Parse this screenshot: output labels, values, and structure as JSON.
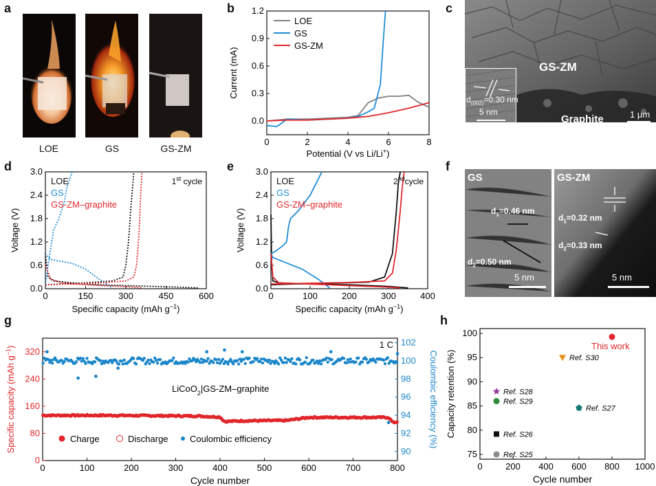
{
  "panels": {
    "a": {
      "letter": "a",
      "samples": [
        "LOE",
        "GS",
        "GS-ZM"
      ]
    },
    "b": {
      "letter": "b"
    },
    "c": {
      "letter": "c",
      "label_main": "GS-ZM",
      "label_sub": "Graphite",
      "inset_scale": "5 nm",
      "scale": "1 μm",
      "dspacing_prefix": "d",
      "dspacing_sub": "(002)",
      "dspacing_value": "=0.30 nm"
    },
    "d": {
      "letter": "d"
    },
    "e": {
      "letter": "e"
    },
    "f": {
      "letter": "f",
      "left_label": "GS",
      "right_label": "GS-ZM",
      "left_d1": "=0.46 nm",
      "left_d2": "=0.50 nm",
      "right_d1": "=0.32 nm",
      "right_d2": "=0.33 nm",
      "scale": "5 nm"
    },
    "g": {
      "letter": "g"
    },
    "h": {
      "letter": "h"
    }
  },
  "colors": {
    "loe": "#808080",
    "gs": "#1f8dd6",
    "gszm": "#e0262b",
    "black": "#111111",
    "ce": "#1b86c9"
  },
  "chart_data": [
    {
      "id": "b",
      "type": "line",
      "xlabel_main": "Potential (V vs Li/Li",
      "xlabel_sup": "+",
      "xlabel_end": ")",
      "ylabel": "Current (mA)",
      "xlim": [
        0,
        8
      ],
      "ylim": [
        -0.15,
        1.2
      ],
      "xticks": [
        0,
        2,
        4,
        6,
        8
      ],
      "yticks": [
        0.0,
        0.3,
        0.6,
        0.9,
        1.2
      ],
      "series": [
        {
          "name": "LOE",
          "color": "#808080",
          "x": [
            0,
            0.5,
            1,
            2,
            3,
            4,
            4.5,
            5,
            5.5,
            6,
            6.5,
            7,
            7.5,
            8
          ],
          "y": [
            0,
            0.01,
            0.02,
            0.02,
            0.03,
            0.04,
            0.06,
            0.2,
            0.25,
            0.27,
            0.27,
            0.28,
            0.2,
            0.15
          ]
        },
        {
          "name": "GS",
          "color": "#1f8dd6",
          "x": [
            0,
            0.5,
            1,
            1.2,
            2,
            3,
            4,
            4.5,
            5,
            5.3,
            5.6,
            5.75,
            5.85
          ],
          "y": [
            -0.05,
            -0.06,
            0.02,
            0.02,
            0.01,
            0.02,
            0.03,
            0.05,
            0.1,
            0.14,
            0.4,
            0.9,
            1.2
          ]
        },
        {
          "name": "GS-ZM",
          "color": "#e0262b",
          "x": [
            0,
            1,
            2,
            3,
            4,
            5,
            6,
            7,
            8
          ],
          "y": [
            0,
            0.01,
            0.01,
            0.02,
            0.03,
            0.05,
            0.09,
            0.14,
            0.2
          ]
        }
      ]
    },
    {
      "id": "d",
      "type": "line",
      "xlabel": "Specific capacity (mAh g",
      "xlabel_sup": "−1",
      "xlabel_end": ")",
      "ylabel": "Voltage (V)",
      "xlim": [
        0,
        600
      ],
      "ylim": [
        0,
        3.0
      ],
      "xticks": [
        0,
        150,
        300,
        450,
        600
      ],
      "yticks": [
        0.0,
        0.6,
        1.2,
        1.8,
        2.4,
        3.0
      ],
      "annotation_main": "1",
      "annotation_sup": "st",
      "annotation_end": " cycle",
      "series": [
        {
          "name": "LOE",
          "color": "#111111",
          "dash": true,
          "x": [
            0,
            10,
            30,
            100,
            200,
            300,
            400,
            500,
            570
          ],
          "y": [
            0.9,
            0.3,
            0.2,
            0.15,
            0.1,
            0.08,
            0.06,
            0.04,
            0.02
          ]
        },
        {
          "name": "LOE",
          "color": "#111111",
          "dash": true,
          "x": [
            0,
            50,
            150,
            250,
            290,
            300,
            310,
            320,
            330
          ],
          "y": [
            0.1,
            0.12,
            0.15,
            0.2,
            0.3,
            0.6,
            1.2,
            2.2,
            3.0
          ]
        },
        {
          "name": "GS",
          "color": "#1f8dd6",
          "dash": true,
          "x": [
            0,
            20,
            60,
            100,
            150,
            200,
            250
          ],
          "y": [
            0.9,
            0.75,
            0.7,
            0.65,
            0.5,
            0.25,
            0.02
          ]
        },
        {
          "name": "GS",
          "color": "#1f8dd6",
          "dash": true,
          "x": [
            0,
            10,
            30,
            50,
            60,
            70,
            80,
            100
          ],
          "y": [
            0.1,
            0.6,
            1.5,
            1.8,
            2.0,
            2.2,
            2.6,
            3.0
          ]
        },
        {
          "name": "GS-ZM–graphite",
          "color": "#e0262b",
          "dash": true,
          "x": [
            0,
            20,
            60,
            150,
            250,
            330,
            360
          ],
          "y": [
            0.6,
            0.25,
            0.15,
            0.1,
            0.07,
            0.04,
            0.02
          ]
        },
        {
          "name": "GS-ZM–graphite",
          "color": "#e0262b",
          "dash": true,
          "x": [
            0,
            100,
            200,
            300,
            330,
            340,
            350,
            355,
            360
          ],
          "y": [
            0.1,
            0.12,
            0.15,
            0.2,
            0.3,
            0.6,
            1.5,
            2.4,
            3.0
          ]
        }
      ]
    },
    {
      "id": "e",
      "type": "line",
      "xlabel": "Specific capacity (mAh g",
      "xlabel_sup": "−1",
      "xlabel_end": ")",
      "ylabel": "Voltage (V)",
      "xlim": [
        0,
        400
      ],
      "ylim": [
        0,
        3.0
      ],
      "xticks": [
        0,
        100,
        200,
        300,
        400
      ],
      "yticks": [
        0.0,
        0.6,
        1.2,
        1.8,
        2.4,
        3.0
      ],
      "annotation_main": "2",
      "annotation_sup": "nd",
      "annotation_end": "cycle",
      "series": [
        {
          "name": "LOE",
          "color": "#111111",
          "x": [
            0,
            2,
            5,
            20,
            100,
            200,
            300,
            350
          ],
          "y": [
            1.9,
            0.6,
            0.2,
            0.15,
            0.12,
            0.1,
            0.06,
            0.02
          ]
        },
        {
          "name": "LOE",
          "color": "#111111",
          "x": [
            0,
            50,
            150,
            250,
            290,
            310,
            320,
            325,
            330
          ],
          "y": [
            0.1,
            0.12,
            0.14,
            0.17,
            0.3,
            0.9,
            2.0,
            2.7,
            3.0
          ]
        },
        {
          "name": "GS",
          "color": "#1f8dd6",
          "x": [
            0,
            5,
            30,
            80,
            120,
            150
          ],
          "y": [
            0.9,
            0.8,
            0.7,
            0.5,
            0.25,
            0.02
          ]
        },
        {
          "name": "GS",
          "color": "#1f8dd6",
          "x": [
            0,
            10,
            30,
            40,
            45,
            50,
            70,
            100,
            130
          ],
          "y": [
            0.9,
            0.95,
            1.1,
            1.2,
            1.6,
            1.8,
            2.0,
            2.4,
            3.0
          ]
        },
        {
          "name": "GS-ZM–graphite",
          "color": "#e0262b",
          "x": [
            0,
            5,
            20,
            100,
            200,
            300,
            330
          ],
          "y": [
            0.9,
            0.3,
            0.15,
            0.12,
            0.08,
            0.04,
            0.02
          ]
        },
        {
          "name": "GS-ZM–graphite",
          "color": "#e0262b",
          "x": [
            0,
            100,
            200,
            290,
            310,
            320,
            330,
            335,
            340
          ],
          "y": [
            0.12,
            0.14,
            0.16,
            0.2,
            0.4,
            1.0,
            2.0,
            2.6,
            3.0
          ]
        }
      ]
    },
    {
      "id": "g",
      "type": "scatter",
      "xlabel": "Cycle number",
      "ylabel_main": "Specific capacity (mAh g",
      "ylabel_sup": "−1",
      "ylabel_end": ")",
      "ylabel_right": "Coulombic efficiency (%)",
      "xlim": [
        0,
        800
      ],
      "ylim": [
        0,
        360
      ],
      "ylim_right": [
        89,
        102.5
      ],
      "xticks": [
        0,
        100,
        200,
        300,
        400,
        500,
        600,
        700,
        800
      ],
      "yticks": [
        0,
        80,
        160,
        240,
        320
      ],
      "yticks_right": [
        90,
        92,
        94,
        96,
        98,
        100,
        102
      ],
      "rate": "1 C",
      "cell_main": "LiCoO",
      "cell_sub": "2",
      "cell_end": "|GS-ZM–graphite",
      "legend": [
        "Charge",
        "Discharge",
        "Coulombic efficiency"
      ],
      "capacity_profile": {
        "x": [
          0,
          150,
          350,
          400,
          410,
          450,
          550,
          600,
          780,
          790,
          800
        ],
        "y": [
          133,
          133,
          131,
          128,
          115,
          117,
          118,
          127,
          127,
          112,
          114
        ]
      },
      "ce_mean": 100.0,
      "ce_outliers": {
        "x": [
          10,
          80,
          120,
          170,
          370,
          410,
          450,
          650,
          780,
          800
        ],
        "y": [
          101.0,
          98.1,
          98.3,
          99.2,
          101.0,
          101.2,
          101.0,
          101.0,
          93.2,
          100.8
        ]
      }
    },
    {
      "id": "h",
      "type": "scatter",
      "xlabel": "Cycle number",
      "ylabel": "Capacity retention (%)",
      "xlim": [
        0,
        1000
      ],
      "ylim": [
        74,
        101
      ],
      "xticks": [
        0,
        200,
        400,
        600,
        800,
        1000
      ],
      "yticks": [
        75,
        80,
        85,
        90,
        95,
        100
      ],
      "points": [
        {
          "label": "This work",
          "x": 800,
          "y": 99.3,
          "color": "#e0262b",
          "shape": "circle"
        },
        {
          "label": "Ref. S30",
          "x": 500,
          "y": 95,
          "color": "#e8901a",
          "shape": "triangle-down"
        },
        {
          "label": "Ref. S28",
          "x": 100,
          "y": 88,
          "color": "#8e3a9a",
          "shape": "star"
        },
        {
          "label": "Ref. S29",
          "x": 100,
          "y": 86,
          "color": "#2e8b3a",
          "shape": "circle"
        },
        {
          "label": "Ref. S27",
          "x": 600,
          "y": 84.6,
          "color": "#177a6e",
          "shape": "pentagon"
        },
        {
          "label": "Ref. S26",
          "x": 100,
          "y": 79.2,
          "color": "#111111",
          "shape": "square"
        },
        {
          "label": "Ref. S25",
          "x": 100,
          "y": 75,
          "color": "#8a8a8a",
          "shape": "circle"
        }
      ]
    }
  ]
}
